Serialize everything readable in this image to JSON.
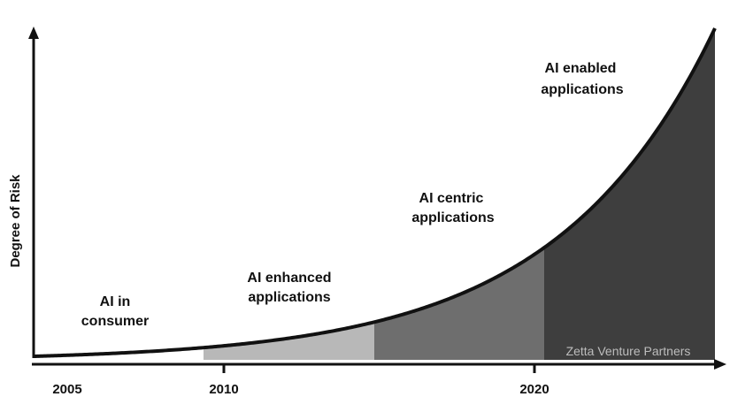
{
  "chart_data": {
    "type": "area",
    "ylabel": "Degree of Risk",
    "xlabel": "",
    "x_ticks": [
      "2005",
      "2010",
      "2020"
    ],
    "curve": "exponential",
    "segments": [
      {
        "label_lines": [
          "AI in",
          "consumer"
        ],
        "color": "#ffffff"
      },
      {
        "label_lines": [
          "AI enhanced",
          "applications"
        ],
        "color": "#b8b8b8"
      },
      {
        "label_lines": [
          "AI centric",
          "applications"
        ],
        "color": "#6e6e6e"
      },
      {
        "label_lines": [
          "AI enabled",
          "applications"
        ],
        "color": "#3e3e3e"
      }
    ],
    "watermark": "Zetta Venture Partners",
    "grid": false,
    "legend": "none"
  }
}
